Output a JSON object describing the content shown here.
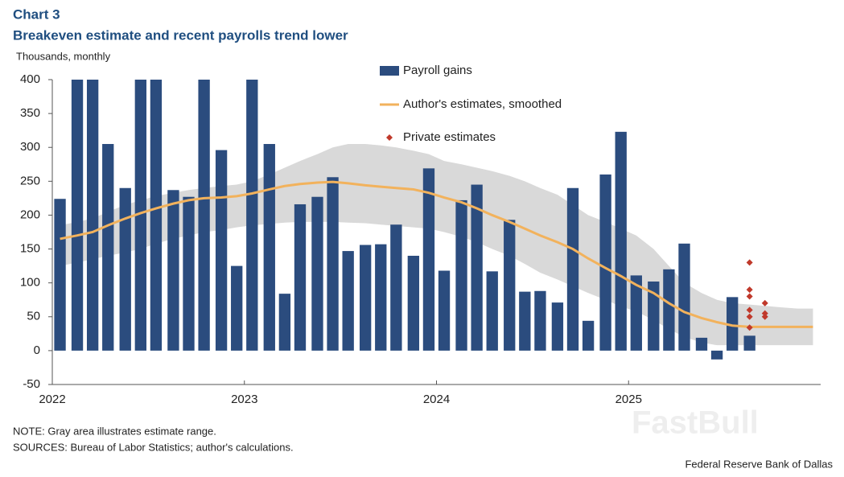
{
  "chart_data": {
    "type": "bar",
    "label": "Chart 3",
    "title": "Breakeven estimate and recent payrolls trend lower",
    "y_label": "Thousands,  monthly",
    "x": [
      2022.04,
      2022.13,
      2022.21,
      2022.29,
      2022.38,
      2022.46,
      2022.54,
      2022.63,
      2022.71,
      2022.79,
      2022.88,
      2022.96,
      2023.04,
      2023.13,
      2023.21,
      2023.29,
      2023.38,
      2023.46,
      2023.54,
      2023.63,
      2023.71,
      2023.79,
      2023.88,
      2023.96,
      2024.04,
      2024.13,
      2024.21,
      2024.29,
      2024.38,
      2024.46,
      2024.54,
      2024.63,
      2024.71,
      2024.79,
      2024.88,
      2024.96,
      2025.04,
      2025.13,
      2025.21,
      2025.29,
      2025.38,
      2025.46,
      2025.54,
      2025.63,
      2025.71,
      2025.79,
      2025.88,
      2025.96
    ],
    "xlim": [
      2022,
      2026
    ],
    "xticks": [
      2022,
      2023,
      2024,
      2025
    ],
    "ylim": [
      -50,
      400
    ],
    "yticks": [
      -50,
      0,
      50,
      100,
      150,
      200,
      250,
      300,
      350,
      400
    ],
    "band": {
      "color": "#d9d9d9",
      "upper": [
        185,
        190,
        195,
        205,
        215,
        222,
        228,
        233,
        237,
        240,
        243,
        245,
        250,
        260,
        270,
        280,
        290,
        300,
        305,
        305,
        303,
        300,
        295,
        290,
        280,
        275,
        270,
        265,
        258,
        250,
        240,
        230,
        215,
        200,
        190,
        180,
        170,
        150,
        125,
        100,
        85,
        75,
        70,
        68,
        66,
        64,
        62,
        62
      ],
      "lower": [
        125,
        130,
        135,
        140,
        145,
        150,
        158,
        165,
        170,
        175,
        178,
        182,
        185,
        187,
        189,
        190,
        190,
        190,
        189,
        188,
        186,
        184,
        182,
        180,
        175,
        168,
        160,
        150,
        140,
        128,
        115,
        105,
        95,
        85,
        75,
        65,
        58,
        45,
        32,
        20,
        12,
        8,
        8,
        8,
        8,
        8,
        8,
        8
      ]
    },
    "series": [
      {
        "name": "Payroll gains",
        "type": "bar",
        "color": "#2b4c7e",
        "values": [
          224,
          400,
          400,
          305,
          240,
          400,
          400,
          237,
          227,
          400,
          296,
          125,
          400,
          305,
          84,
          216,
          227,
          256,
          147,
          156,
          157,
          186,
          140,
          269,
          118,
          222,
          245,
          117,
          193,
          87,
          88,
          71,
          240,
          44,
          260,
          323,
          111,
          102,
          120,
          158,
          19,
          -13,
          79,
          22,
          null,
          null,
          null,
          null
        ]
      },
      {
        "name": "Author's estimates, smoothed",
        "type": "line",
        "color": "#f2b25c",
        "values": [
          165,
          170,
          175,
          185,
          195,
          203,
          210,
          217,
          222,
          225,
          226,
          228,
          232,
          238,
          243,
          246,
          248,
          249,
          247,
          244,
          242,
          240,
          238,
          233,
          226,
          219,
          210,
          200,
          190,
          180,
          170,
          160,
          150,
          136,
          122,
          110,
          97,
          85,
          70,
          57,
          48,
          42,
          37,
          35,
          35,
          35,
          35,
          35
        ]
      },
      {
        "name": "Private estimates",
        "type": "scatter",
        "color": "#c0392b",
        "x": [
          2025.63,
          2025.63,
          2025.63,
          2025.63,
          2025.63,
          2025.63,
          2025.71,
          2025.71,
          2025.71
        ],
        "values": [
          130,
          90,
          80,
          60,
          50,
          34,
          70,
          55,
          50
        ]
      }
    ],
    "note": "NOTE: Gray area illustrates estimate range.",
    "sources": "SOURCES: Bureau of Labor Statistics; author's calculations.",
    "credit": "Federal Reserve Bank of Dallas",
    "watermark": "FastBull"
  }
}
